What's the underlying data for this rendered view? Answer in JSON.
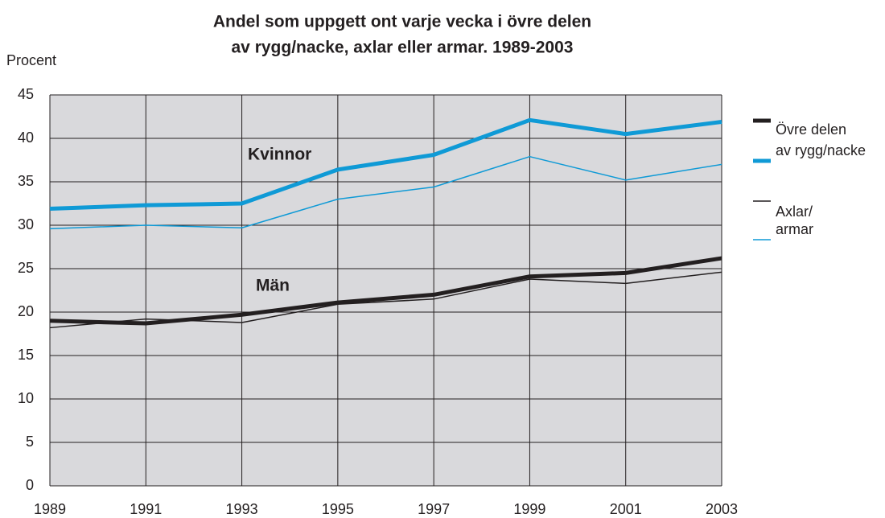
{
  "chart_data": {
    "type": "line",
    "title": [
      "Andel som uppgett ont varje vecka i övre delen",
      "av rygg/nacke,  axlar eller armar. 1989-2003"
    ],
    "y_label": "Procent",
    "x": [
      1989,
      1991,
      1993,
      1995,
      1997,
      1999,
      2001,
      2003
    ],
    "xlim": [
      1989,
      2003
    ],
    "xticks": [
      1989,
      1991,
      1993,
      1995,
      1997,
      1999,
      2001,
      2003
    ],
    "ylim": [
      0,
      45
    ],
    "yticks": [
      0,
      5,
      10,
      15,
      20,
      25,
      30,
      35,
      40,
      45
    ],
    "grid": true,
    "series": [
      {
        "color": "#0f9ad6",
        "width": 5,
        "values": [
          31.9,
          32.3,
          32.5,
          36.4,
          38.1,
          42.1,
          40.5,
          41.9
        ]
      },
      {
        "color": "#0f9ad6",
        "width": 1.5,
        "values": [
          29.6,
          30.0,
          29.7,
          33.0,
          34.4,
          37.9,
          35.2,
          37.0
        ]
      },
      {
        "color": "#231f20",
        "width": 5,
        "values": [
          19.0,
          18.7,
          19.7,
          21.1,
          22.0,
          24.1,
          24.5,
          26.2
        ]
      },
      {
        "color": "#231f20",
        "width": 1.5,
        "values": [
          18.2,
          19.2,
          18.8,
          20.9,
          21.5,
          23.8,
          23.3,
          24.6
        ]
      }
    ],
    "legend": [
      {
        "label": [
          "Övre delen",
          "av rygg/nacke"
        ],
        "series": [
          2,
          0
        ]
      },
      {
        "label": [
          "Axlar/",
          "armar"
        ],
        "series": [
          3,
          1
        ]
      }
    ],
    "annotations": [
      "Kvinnor",
      "Män"
    ]
  }
}
